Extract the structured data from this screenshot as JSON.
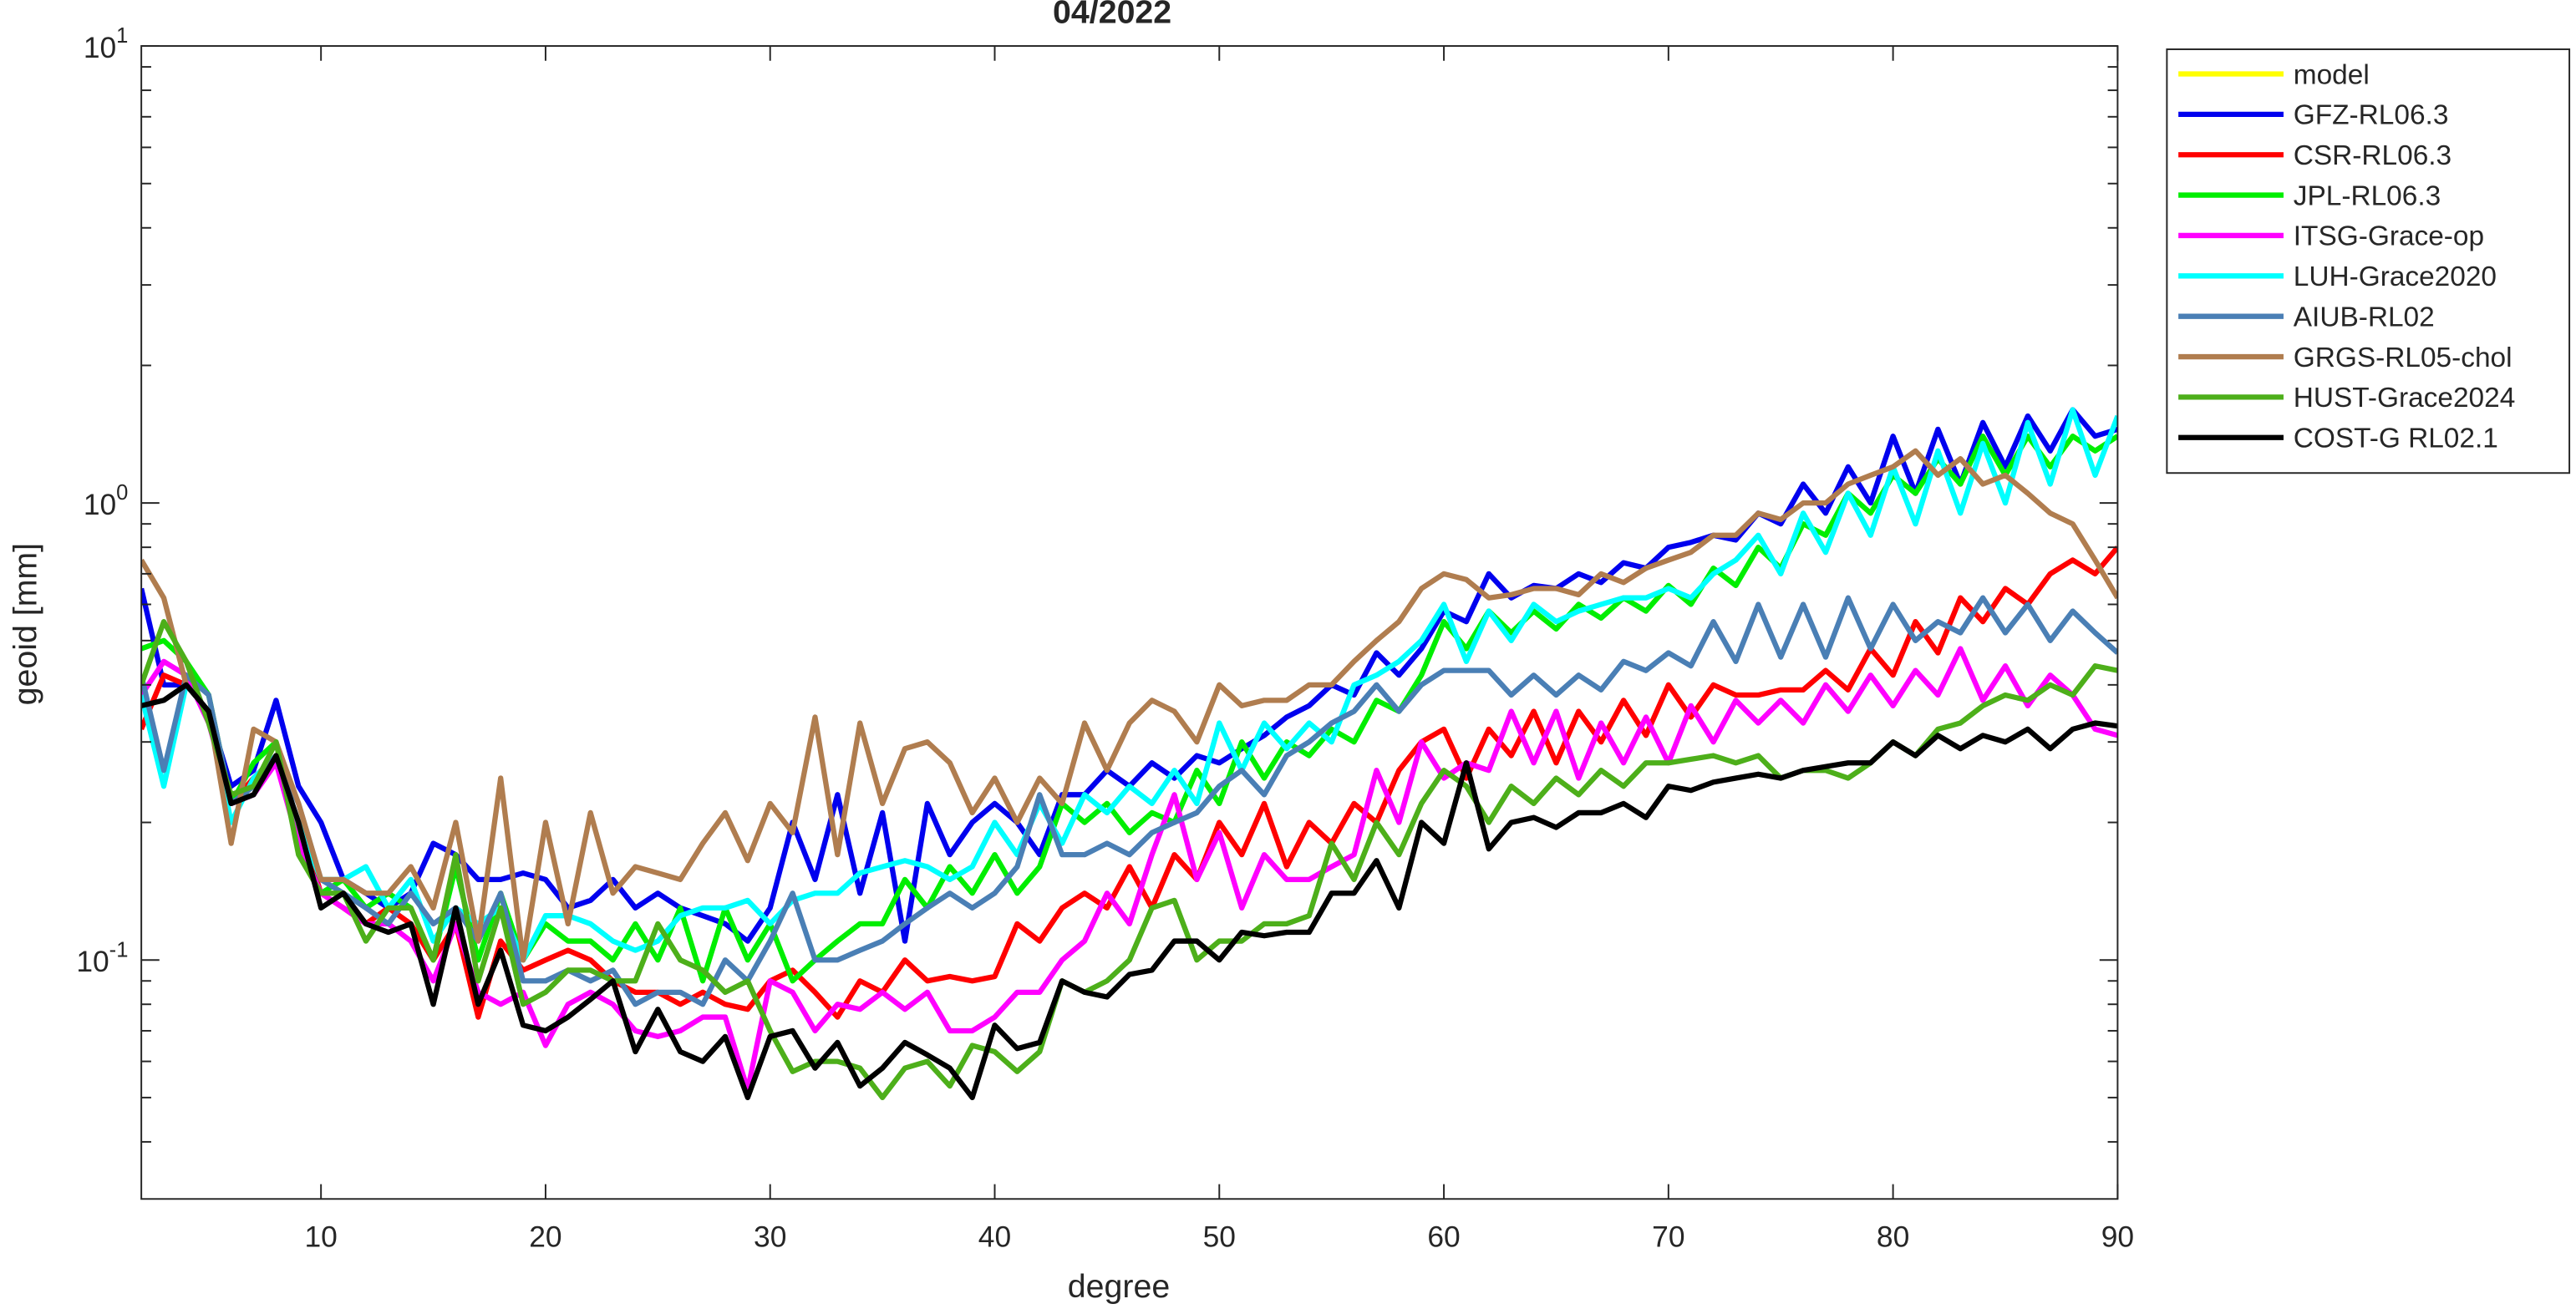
{
  "chart_data": {
    "type": "line",
    "title": "04/2022",
    "xlabel": "degree",
    "ylabel": "geoid [mm]",
    "yscale": "log",
    "grid": false,
    "legend": "outside-northeast",
    "xlim": [
      2,
      90
    ],
    "xticks": [
      10,
      20,
      30,
      40,
      50,
      60,
      70,
      80,
      90
    ],
    "ylim": [
      0.03,
      10
    ],
    "yticks": [
      {
        "value": 0.1,
        "label": "10",
        "exponent": "-1"
      },
      {
        "value": 1,
        "label": "10",
        "exponent": "0"
      },
      {
        "value": 10,
        "label": "10",
        "exponent": "1"
      }
    ],
    "yminorticks": [
      0.04,
      0.05,
      0.06,
      0.07,
      0.08,
      0.09,
      0.2,
      0.3,
      0.4,
      0.5,
      0.6,
      0.7,
      0.8,
      0.9,
      2,
      3,
      4,
      5,
      6,
      7,
      8,
      9
    ],
    "x": [
      2,
      3,
      4,
      5,
      6,
      7,
      8,
      9,
      10,
      11,
      12,
      13,
      14,
      15,
      16,
      17,
      18,
      19,
      20,
      21,
      22,
      23,
      24,
      25,
      26,
      27,
      28,
      29,
      30,
      31,
      32,
      33,
      34,
      35,
      36,
      37,
      38,
      39,
      40,
      41,
      42,
      43,
      44,
      45,
      46,
      47,
      48,
      49,
      50,
      51,
      52,
      53,
      54,
      55,
      56,
      57,
      58,
      59,
      60,
      61,
      62,
      63,
      64,
      65,
      66,
      67,
      68,
      69,
      70,
      71,
      72,
      73,
      74,
      75,
      76,
      77,
      78,
      79,
      80,
      81,
      82,
      83,
      84,
      85,
      86,
      87,
      88,
      89,
      90
    ],
    "series": [
      {
        "name": "model",
        "color": "#ffff00",
        "values": [
          null,
          null,
          null,
          null,
          null,
          null,
          null,
          null,
          null,
          null,
          null,
          null,
          null,
          null,
          null,
          null,
          null,
          null,
          null,
          null,
          null,
          null,
          null,
          null,
          null,
          null,
          null,
          null,
          null,
          null,
          null,
          null,
          null,
          null,
          null,
          null,
          null,
          null,
          null,
          null,
          null,
          null,
          null,
          null,
          null,
          null,
          null,
          null,
          null,
          null,
          null,
          null,
          null,
          null,
          null,
          null,
          null,
          null,
          null,
          null,
          null,
          null,
          null,
          null,
          null,
          null,
          null,
          null,
          null,
          null,
          null,
          null,
          null,
          null,
          null,
          null,
          null,
          null,
          null,
          null,
          null,
          null,
          null,
          null,
          null,
          null,
          null,
          null,
          null
        ]
      },
      {
        "name": "GFZ-RL06.3",
        "color": "#0000ee",
        "values": [
          0.65,
          0.4,
          0.4,
          0.35,
          0.24,
          0.26,
          0.37,
          0.24,
          0.2,
          0.15,
          0.14,
          0.13,
          0.14,
          0.18,
          0.17,
          0.15,
          0.15,
          0.155,
          0.15,
          0.13,
          0.135,
          0.15,
          0.13,
          0.14,
          0.13,
          0.125,
          0.12,
          0.11,
          0.13,
          0.2,
          0.15,
          0.23,
          0.14,
          0.21,
          0.11,
          0.22,
          0.17,
          0.2,
          0.22,
          0.2,
          0.17,
          0.23,
          0.23,
          0.26,
          0.24,
          0.27,
          0.25,
          0.28,
          0.27,
          0.29,
          0.31,
          0.34,
          0.36,
          0.4,
          0.38,
          0.47,
          0.42,
          0.48,
          0.58,
          0.55,
          0.7,
          0.62,
          0.66,
          0.65,
          0.7,
          0.67,
          0.74,
          0.72,
          0.8,
          0.82,
          0.85,
          0.83,
          0.95,
          0.9,
          1.1,
          0.95,
          1.2,
          1.0,
          1.4,
          1.05,
          1.45,
          1.1,
          1.5,
          1.2,
          1.55,
          1.3,
          1.6,
          1.4,
          1.45
        ]
      },
      {
        "name": "CSR-RL06.3",
        "color": "#ff0000",
        "values": [
          0.32,
          0.42,
          0.4,
          0.35,
          0.22,
          0.25,
          0.28,
          0.2,
          0.14,
          0.13,
          0.12,
          0.13,
          0.12,
          0.1,
          0.12,
          0.075,
          0.11,
          0.095,
          0.1,
          0.105,
          0.1,
          0.09,
          0.085,
          0.085,
          0.08,
          0.085,
          0.08,
          0.078,
          0.09,
          0.095,
          0.085,
          0.075,
          0.09,
          0.085,
          0.1,
          0.09,
          0.092,
          0.09,
          0.092,
          0.12,
          0.11,
          0.13,
          0.14,
          0.13,
          0.16,
          0.13,
          0.17,
          0.15,
          0.2,
          0.17,
          0.22,
          0.16,
          0.2,
          0.18,
          0.22,
          0.2,
          0.26,
          0.3,
          0.32,
          0.25,
          0.32,
          0.28,
          0.35,
          0.27,
          0.35,
          0.3,
          0.37,
          0.31,
          0.4,
          0.34,
          0.4,
          0.38,
          0.38,
          0.39,
          0.39,
          0.43,
          0.39,
          0.48,
          0.42,
          0.55,
          0.47,
          0.62,
          0.55,
          0.65,
          0.6,
          0.7,
          0.75,
          0.7,
          0.8
        ]
      },
      {
        "name": "JPL-RL06.3",
        "color": "#00ee00",
        "values": [
          0.48,
          0.5,
          0.45,
          0.38,
          0.22,
          0.27,
          0.3,
          0.18,
          0.14,
          0.15,
          0.13,
          0.14,
          0.13,
          0.1,
          0.16,
          0.1,
          0.14,
          0.1,
          0.12,
          0.11,
          0.11,
          0.1,
          0.12,
          0.1,
          0.13,
          0.09,
          0.13,
          0.1,
          0.12,
          0.09,
          0.1,
          0.11,
          0.12,
          0.12,
          0.15,
          0.13,
          0.16,
          0.14,
          0.17,
          0.14,
          0.16,
          0.22,
          0.2,
          0.22,
          0.19,
          0.21,
          0.2,
          0.26,
          0.22,
          0.3,
          0.25,
          0.3,
          0.28,
          0.32,
          0.3,
          0.37,
          0.35,
          0.42,
          0.55,
          0.48,
          0.58,
          0.52,
          0.58,
          0.53,
          0.6,
          0.56,
          0.62,
          0.58,
          0.66,
          0.6,
          0.72,
          0.66,
          0.8,
          0.72,
          0.9,
          0.85,
          1.05,
          0.95,
          1.15,
          1.05,
          1.25,
          1.1,
          1.4,
          1.15,
          1.4,
          1.2,
          1.4,
          1.3,
          1.4
        ]
      },
      {
        "name": "ITSG-Grace-op",
        "color": "#ff00ff",
        "values": [
          0.38,
          0.45,
          0.42,
          0.33,
          0.22,
          0.23,
          0.27,
          0.18,
          0.14,
          0.13,
          0.12,
          0.12,
          0.11,
          0.09,
          0.12,
          0.085,
          0.08,
          0.085,
          0.065,
          0.08,
          0.085,
          0.08,
          0.07,
          0.068,
          0.07,
          0.075,
          0.075,
          0.052,
          0.09,
          0.085,
          0.07,
          0.08,
          0.078,
          0.085,
          0.078,
          0.085,
          0.07,
          0.07,
          0.075,
          0.085,
          0.085,
          0.1,
          0.11,
          0.14,
          0.12,
          0.17,
          0.23,
          0.15,
          0.19,
          0.13,
          0.17,
          0.15,
          0.15,
          0.16,
          0.17,
          0.26,
          0.2,
          0.3,
          0.25,
          0.27,
          0.26,
          0.35,
          0.27,
          0.35,
          0.25,
          0.33,
          0.27,
          0.34,
          0.27,
          0.36,
          0.3,
          0.37,
          0.33,
          0.37,
          0.33,
          0.4,
          0.35,
          0.42,
          0.36,
          0.43,
          0.38,
          0.48,
          0.37,
          0.44,
          0.36,
          0.42,
          0.38,
          0.32,
          0.31
        ]
      },
      {
        "name": "LUH-Grace2020",
        "color": "#00ffff",
        "values": [
          0.38,
          0.24,
          0.4,
          0.35,
          0.2,
          0.25,
          0.28,
          0.2,
          0.15,
          0.15,
          0.16,
          0.13,
          0.15,
          0.11,
          0.13,
          0.12,
          0.13,
          0.1,
          0.125,
          0.125,
          0.12,
          0.11,
          0.105,
          0.11,
          0.125,
          0.13,
          0.13,
          0.135,
          0.12,
          0.135,
          0.14,
          0.14,
          0.155,
          0.16,
          0.165,
          0.16,
          0.15,
          0.16,
          0.2,
          0.17,
          0.22,
          0.18,
          0.23,
          0.21,
          0.24,
          0.22,
          0.26,
          0.22,
          0.33,
          0.26,
          0.33,
          0.29,
          0.33,
          0.3,
          0.4,
          0.42,
          0.45,
          0.5,
          0.6,
          0.45,
          0.58,
          0.5,
          0.6,
          0.55,
          0.58,
          0.6,
          0.62,
          0.62,
          0.65,
          0.62,
          0.7,
          0.75,
          0.85,
          0.7,
          0.95,
          0.78,
          1.05,
          0.85,
          1.2,
          0.9,
          1.3,
          0.95,
          1.35,
          1.0,
          1.5,
          1.1,
          1.6,
          1.15,
          1.55
        ]
      },
      {
        "name": "AIUB-RL02",
        "color": "#4a7fb5",
        "values": [
          0.42,
          0.26,
          0.42,
          0.38,
          0.22,
          0.24,
          0.28,
          0.22,
          0.15,
          0.14,
          0.13,
          0.12,
          0.14,
          0.12,
          0.13,
          0.11,
          0.14,
          0.09,
          0.09,
          0.095,
          0.09,
          0.095,
          0.08,
          0.085,
          0.085,
          0.08,
          0.1,
          0.09,
          0.11,
          0.14,
          0.1,
          0.1,
          0.105,
          0.11,
          0.12,
          0.13,
          0.14,
          0.13,
          0.14,
          0.16,
          0.23,
          0.17,
          0.17,
          0.18,
          0.17,
          0.19,
          0.2,
          0.21,
          0.24,
          0.26,
          0.23,
          0.28,
          0.3,
          0.33,
          0.35,
          0.4,
          0.35,
          0.4,
          0.43,
          0.43,
          0.43,
          0.38,
          0.42,
          0.38,
          0.42,
          0.39,
          0.45,
          0.43,
          0.47,
          0.44,
          0.55,
          0.45,
          0.6,
          0.46,
          0.6,
          0.46,
          0.62,
          0.48,
          0.6,
          0.5,
          0.55,
          0.52,
          0.62,
          0.52,
          0.6,
          0.5,
          0.58,
          0.52,
          0.47
        ]
      },
      {
        "name": "GRGS-RL05-chol",
        "color": "#b07d4f",
        "values": [
          0.75,
          0.62,
          0.4,
          0.35,
          0.18,
          0.32,
          0.3,
          0.22,
          0.15,
          0.15,
          0.14,
          0.14,
          0.16,
          0.13,
          0.2,
          0.11,
          0.25,
          0.1,
          0.2,
          0.12,
          0.21,
          0.14,
          0.16,
          0.155,
          0.15,
          0.18,
          0.21,
          0.165,
          0.22,
          0.19,
          0.34,
          0.17,
          0.33,
          0.22,
          0.29,
          0.3,
          0.27,
          0.21,
          0.25,
          0.2,
          0.25,
          0.22,
          0.33,
          0.26,
          0.33,
          0.37,
          0.35,
          0.3,
          0.4,
          0.36,
          0.37,
          0.37,
          0.4,
          0.4,
          0.45,
          0.5,
          0.55,
          0.65,
          0.7,
          0.68,
          0.62,
          0.63,
          0.65,
          0.65,
          0.63,
          0.7,
          0.67,
          0.72,
          0.75,
          0.78,
          0.85,
          0.85,
          0.95,
          0.92,
          1.0,
          1.0,
          1.1,
          1.15,
          1.2,
          1.3,
          1.15,
          1.25,
          1.1,
          1.15,
          1.05,
          0.95,
          0.9,
          0.75,
          0.62
        ]
      },
      {
        "name": "HUST-Grace2024",
        "color": "#4daf1a",
        "values": [
          0.4,
          0.55,
          0.45,
          0.33,
          0.23,
          0.24,
          0.3,
          0.17,
          0.14,
          0.14,
          0.11,
          0.13,
          0.13,
          0.1,
          0.17,
          0.09,
          0.13,
          0.08,
          0.085,
          0.095,
          0.095,
          0.09,
          0.09,
          0.12,
          0.1,
          0.095,
          0.085,
          0.09,
          0.07,
          0.057,
          0.06,
          0.06,
          0.058,
          0.05,
          0.058,
          0.06,
          0.053,
          0.065,
          0.063,
          0.057,
          0.063,
          0.09,
          0.085,
          0.09,
          0.1,
          0.13,
          0.135,
          0.1,
          0.11,
          0.11,
          0.12,
          0.12,
          0.125,
          0.18,
          0.15,
          0.2,
          0.17,
          0.22,
          0.26,
          0.24,
          0.2,
          0.24,
          0.22,
          0.25,
          0.23,
          0.26,
          0.24,
          0.27,
          0.27,
          0.275,
          0.28,
          0.27,
          0.28,
          0.25,
          0.26,
          0.26,
          0.25,
          0.27,
          0.3,
          0.28,
          0.32,
          0.33,
          0.36,
          0.38,
          0.37,
          0.4,
          0.38,
          0.44,
          0.43
        ]
      },
      {
        "name": "COST-G RL02.1",
        "color": "#000000",
        "values": [
          0.36,
          0.37,
          0.4,
          0.35,
          0.22,
          0.23,
          0.28,
          0.2,
          0.13,
          0.14,
          0.12,
          0.115,
          0.12,
          0.08,
          0.13,
          0.08,
          0.105,
          0.072,
          0.07,
          0.075,
          0.082,
          0.09,
          0.063,
          0.078,
          0.063,
          0.06,
          0.068,
          0.05,
          0.068,
          0.07,
          0.058,
          0.066,
          0.053,
          0.058,
          0.066,
          0.062,
          0.058,
          0.05,
          0.072,
          0.064,
          0.066,
          0.09,
          0.085,
          0.083,
          0.093,
          0.095,
          0.11,
          0.11,
          0.1,
          0.115,
          0.113,
          0.115,
          0.115,
          0.14,
          0.14,
          0.165,
          0.13,
          0.2,
          0.18,
          0.27,
          0.175,
          0.2,
          0.205,
          0.195,
          0.21,
          0.21,
          0.22,
          0.205,
          0.24,
          0.235,
          0.245,
          0.25,
          0.255,
          0.25,
          0.26,
          0.265,
          0.27,
          0.27,
          0.3,
          0.28,
          0.31,
          0.29,
          0.31,
          0.3,
          0.32,
          0.29,
          0.32,
          0.33,
          0.325
        ]
      }
    ]
  }
}
